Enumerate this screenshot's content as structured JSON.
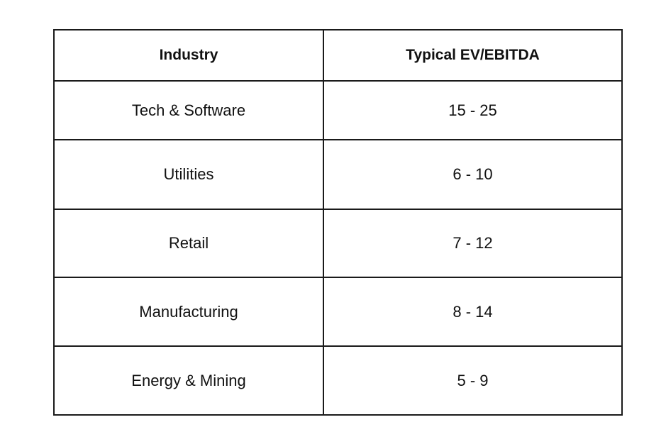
{
  "table": {
    "headers": {
      "industry": "Industry",
      "multiple": "Typical EV/EBITDA"
    },
    "rows": [
      {
        "industry": "Tech & Software",
        "multiple": "15 - 25"
      },
      {
        "industry": "Utilities",
        "multiple": "6 - 10"
      },
      {
        "industry": "Retail",
        "multiple": "7 - 12"
      },
      {
        "industry": "Manufacturing",
        "multiple": "8 - 14"
      },
      {
        "industry": "Energy & Mining",
        "multiple": "5 - 9"
      }
    ]
  }
}
